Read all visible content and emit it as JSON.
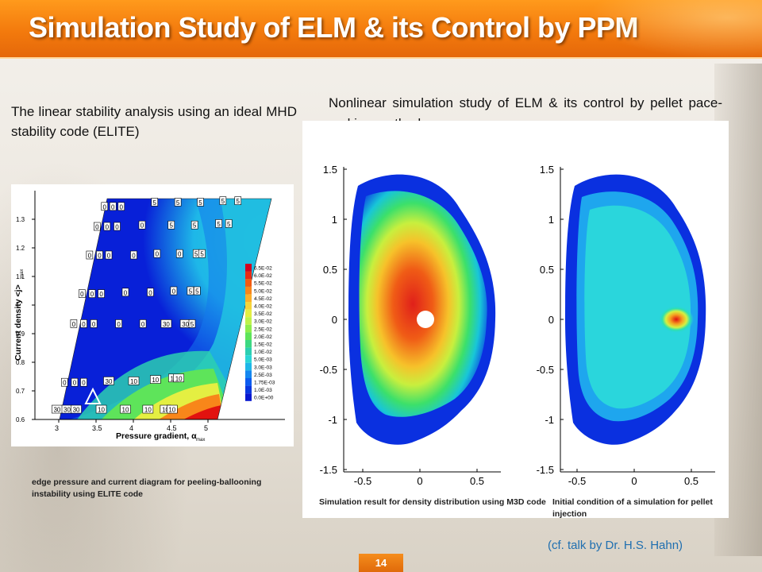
{
  "slide": {
    "title": "Simulation Study of ELM & its Control by PPM",
    "page_number": "14"
  },
  "left": {
    "heading": "The linear stability analysis using an ideal MHD stability code (ELITE)",
    "caption": "edge pressure and current diagram for peeling-ballooning instability using ELITE code",
    "chart": {
      "xlabel": "Pressure gradient, α",
      "xlabel_sub": "max",
      "ylabel": "Current density <j>",
      "ylabel_sub": "max",
      "x_ticks": [
        "3",
        "3.5",
        "4",
        "4.5",
        "5"
      ],
      "y_ticks": [
        "0.6",
        "0.7",
        "0.8",
        "0.9",
        "1",
        "1.1",
        "1.2",
        "1.3"
      ],
      "legend": [
        "6.5E-02",
        "6.0E-02",
        "5.5E-02",
        "5.0E-02",
        "4.5E-02",
        "4.0E-02",
        "3.5E-02",
        "3.0E-02",
        "2.5E-02",
        "2.0E-02",
        "1.5E-02",
        "1.0E-02",
        "5.0E-03",
        "3.0E-03",
        "2.5E-03",
        "1.75E-03",
        "1.0E-03",
        "0.0E+00"
      ],
      "legend_colors": [
        "#d2001e",
        "#e82a14",
        "#f45a10",
        "#f8861a",
        "#fbb02a",
        "#f6d43a",
        "#e4ef42",
        "#bff24a",
        "#8eee4c",
        "#5ee45a",
        "#3cd882",
        "#2ccfb2",
        "#2ad6d6",
        "#1eb7e8",
        "#1487f0",
        "#0c5cf0",
        "#0838e0",
        "#0818d0"
      ],
      "markers": [
        {
          "x": 2.95,
          "y": 1.345,
          "v": "0"
        },
        {
          "x": 3.05,
          "y": 1.345,
          "v": "0"
        },
        {
          "x": 3.15,
          "y": 1.345,
          "v": "0"
        },
        {
          "x": 3.55,
          "y": 1.36,
          "v": "5"
        },
        {
          "x": 3.83,
          "y": 1.36,
          "v": "5"
        },
        {
          "x": 4.1,
          "y": 1.36,
          "v": "5"
        },
        {
          "x": 4.37,
          "y": 1.365,
          "v": "5"
        },
        {
          "x": 4.55,
          "y": 1.365,
          "v": "5"
        },
        {
          "x": 2.86,
          "y": 1.275,
          "v": "0"
        },
        {
          "x": 2.98,
          "y": 1.275,
          "v": "0"
        },
        {
          "x": 3.1,
          "y": 1.275,
          "v": "0"
        },
        {
          "x": 3.4,
          "y": 1.28,
          "v": "0"
        },
        {
          "x": 3.75,
          "y": 1.28,
          "v": "5"
        },
        {
          "x": 4.03,
          "y": 1.28,
          "v": "5"
        },
        {
          "x": 4.32,
          "y": 1.285,
          "v": "5"
        },
        {
          "x": 4.44,
          "y": 1.285,
          "v": "5"
        },
        {
          "x": 2.77,
          "y": 1.175,
          "v": "0"
        },
        {
          "x": 2.89,
          "y": 1.175,
          "v": "0"
        },
        {
          "x": 3.0,
          "y": 1.175,
          "v": "0"
        },
        {
          "x": 3.3,
          "y": 1.175,
          "v": "0"
        },
        {
          "x": 3.58,
          "y": 1.18,
          "v": "0"
        },
        {
          "x": 3.85,
          "y": 1.18,
          "v": "0"
        },
        {
          "x": 4.05,
          "y": 1.18,
          "v": "5"
        },
        {
          "x": 4.12,
          "y": 1.18,
          "v": "5"
        },
        {
          "x": 2.68,
          "y": 1.04,
          "v": "0"
        },
        {
          "x": 2.8,
          "y": 1.04,
          "v": "0"
        },
        {
          "x": 2.91,
          "y": 1.04,
          "v": "0"
        },
        {
          "x": 3.2,
          "y": 1.045,
          "v": "0"
        },
        {
          "x": 3.5,
          "y": 1.045,
          "v": "0"
        },
        {
          "x": 3.78,
          "y": 1.05,
          "v": "0"
        },
        {
          "x": 3.98,
          "y": 1.05,
          "v": "5"
        },
        {
          "x": 4.06,
          "y": 1.05,
          "v": "5"
        },
        {
          "x": 2.58,
          "y": 0.935,
          "v": "0"
        },
        {
          "x": 2.7,
          "y": 0.935,
          "v": "0"
        },
        {
          "x": 2.82,
          "y": 0.935,
          "v": "0"
        },
        {
          "x": 3.12,
          "y": 0.935,
          "v": "0"
        },
        {
          "x": 3.41,
          "y": 0.935,
          "v": "0"
        },
        {
          "x": 3.69,
          "y": 0.935,
          "v": "30"
        },
        {
          "x": 3.92,
          "y": 0.935,
          "v": "30"
        },
        {
          "x": 4.0,
          "y": 0.935,
          "v": "5"
        },
        {
          "x": 2.47,
          "y": 0.73,
          "v": "0"
        },
        {
          "x": 2.59,
          "y": 0.73,
          "v": "0"
        },
        {
          "x": 2.7,
          "y": 0.73,
          "v": "0"
        },
        {
          "x": 3.0,
          "y": 0.735,
          "v": "30"
        },
        {
          "x": 3.3,
          "y": 0.735,
          "v": "10"
        },
        {
          "x": 3.56,
          "y": 0.74,
          "v": "10"
        },
        {
          "x": 3.78,
          "y": 0.745,
          "v": "10"
        },
        {
          "x": 3.84,
          "y": 0.745,
          "v": "10"
        },
        {
          "x": 2.38,
          "y": 0.636,
          "v": "30"
        },
        {
          "x": 2.5,
          "y": 0.636,
          "v": "30"
        },
        {
          "x": 2.61,
          "y": 0.636,
          "v": "30"
        },
        {
          "x": 2.91,
          "y": 0.636,
          "v": "10"
        },
        {
          "x": 3.2,
          "y": 0.636,
          "v": "10"
        },
        {
          "x": 3.47,
          "y": 0.636,
          "v": "10"
        },
        {
          "x": 3.68,
          "y": 0.636,
          "v": "10"
        },
        {
          "x": 3.76,
          "y": 0.636,
          "v": "10"
        }
      ]
    }
  },
  "right": {
    "heading": "Nonlinear simulation study of ELM & its control by pellet pace-making method",
    "caption_mid": "Simulation result for density distribution using M3D code",
    "caption_right": "Initial condition of a simulation for pellet injection",
    "cf_note": "(cf. talk by Dr. H.S. Hahn)",
    "plot": {
      "x_ticks": [
        "-0.5",
        "0",
        "0.5"
      ],
      "y_ticks": [
        "1.5",
        "1",
        "0.5",
        "0",
        "-0.5",
        "-1",
        "-1.5"
      ]
    }
  }
}
